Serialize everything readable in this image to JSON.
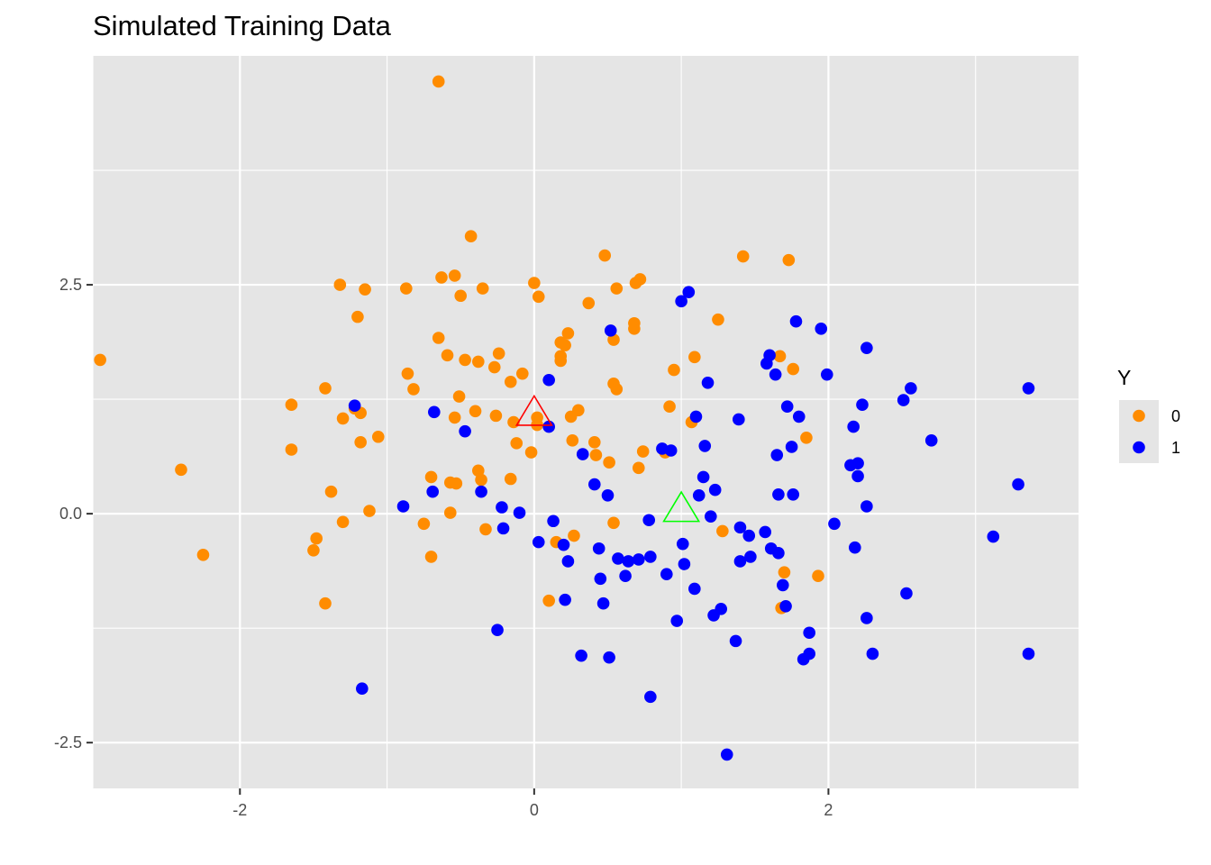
{
  "chart_data": {
    "type": "scatter",
    "title": "Simulated Training Data",
    "xlabel": "",
    "ylabel": "",
    "xlim": [
      -3.0,
      3.7
    ],
    "ylim": [
      -3.0,
      5.0
    ],
    "x_ticks": [
      -2,
      0,
      2
    ],
    "x_tick_labels": [
      "-2",
      "0",
      "2"
    ],
    "y_ticks": [
      -2.5,
      0,
      2.5
    ],
    "y_tick_labels": [
      "-2.5",
      "0.0",
      "2.5"
    ],
    "grid": true,
    "legend": {
      "title": "Y",
      "position": "right"
    },
    "series": [
      {
        "name": "0",
        "color": "#ff8c00",
        "points": [
          [
            -0.65,
            4.72
          ],
          [
            -2.95,
            1.68
          ],
          [
            -2.4,
            0.48
          ],
          [
            -2.25,
            -0.45
          ],
          [
            -1.65,
            1.19
          ],
          [
            -1.65,
            0.7
          ],
          [
            -1.5,
            -0.4
          ],
          [
            -1.48,
            -0.27
          ],
          [
            -1.42,
            -0.98
          ],
          [
            -1.42,
            1.37
          ],
          [
            -1.38,
            0.24
          ],
          [
            -1.3,
            -0.09
          ],
          [
            -1.3,
            1.04
          ],
          [
            -1.32,
            2.5
          ],
          [
            -1.22,
            1.15
          ],
          [
            -1.2,
            2.15
          ],
          [
            -1.18,
            1.1
          ],
          [
            -1.18,
            0.78
          ],
          [
            -1.15,
            2.45
          ],
          [
            -1.12,
            0.03
          ],
          [
            -1.06,
            0.84
          ],
          [
            -0.87,
            2.46
          ],
          [
            -0.86,
            1.53
          ],
          [
            -0.82,
            1.36
          ],
          [
            -0.75,
            -0.11
          ],
          [
            -0.7,
            0.4
          ],
          [
            -0.7,
            -0.47
          ],
          [
            -0.65,
            1.92
          ],
          [
            -0.63,
            2.58
          ],
          [
            -0.59,
            1.73
          ],
          [
            -0.57,
            0.34
          ],
          [
            -0.57,
            0.01
          ],
          [
            -0.54,
            2.6
          ],
          [
            -0.54,
            1.05
          ],
          [
            -0.53,
            0.33
          ],
          [
            -0.51,
            1.28
          ],
          [
            -0.5,
            2.38
          ],
          [
            -0.47,
            1.68
          ],
          [
            -0.43,
            3.03
          ],
          [
            -0.4,
            1.12
          ],
          [
            -0.38,
            1.66
          ],
          [
            -0.38,
            0.47
          ],
          [
            -0.36,
            0.37
          ],
          [
            -0.35,
            2.46
          ],
          [
            -0.33,
            -0.17
          ],
          [
            -0.27,
            1.6
          ],
          [
            -0.26,
            1.07
          ],
          [
            -0.24,
            1.75
          ],
          [
            -0.16,
            1.44
          ],
          [
            -0.16,
            0.38
          ],
          [
            -0.14,
            1.0
          ],
          [
            -0.12,
            0.77
          ],
          [
            -0.08,
            1.53
          ],
          [
            -0.02,
            0.67
          ],
          [
            0.0,
            2.52
          ],
          [
            0.02,
            1.05
          ],
          [
            0.02,
            0.97
          ],
          [
            0.03,
            2.37
          ],
          [
            0.15,
            -0.31
          ],
          [
            0.18,
            1.87
          ],
          [
            0.18,
            1.67
          ],
          [
            0.18,
            1.72
          ],
          [
            0.21,
            1.84
          ],
          [
            0.23,
            1.97
          ],
          [
            0.25,
            1.06
          ],
          [
            0.26,
            0.8
          ],
          [
            0.27,
            -0.24
          ],
          [
            0.3,
            1.13
          ],
          [
            0.1,
            -0.95
          ],
          [
            0.37,
            2.3
          ],
          [
            0.41,
            0.78
          ],
          [
            0.42,
            0.64
          ],
          [
            0.48,
            2.82
          ],
          [
            0.51,
            0.56
          ],
          [
            0.54,
            -0.1
          ],
          [
            0.54,
            1.42
          ],
          [
            0.54,
            1.9
          ],
          [
            0.56,
            2.46
          ],
          [
            0.56,
            1.36
          ],
          [
            0.68,
            2.08
          ],
          [
            0.68,
            2.02
          ],
          [
            0.69,
            2.52
          ],
          [
            0.71,
            0.5
          ],
          [
            0.72,
            2.56
          ],
          [
            0.74,
            0.68
          ],
          [
            0.89,
            0.67
          ],
          [
            0.92,
            1.17
          ],
          [
            0.95,
            1.57
          ],
          [
            1.07,
            1.0
          ],
          [
            1.09,
            1.71
          ],
          [
            1.25,
            2.12
          ],
          [
            1.28,
            -0.19
          ],
          [
            1.42,
            2.81
          ],
          [
            1.67,
            1.72
          ],
          [
            1.68,
            -1.03
          ],
          [
            1.7,
            -0.64
          ],
          [
            1.73,
            2.77
          ],
          [
            1.76,
            1.58
          ],
          [
            1.85,
            0.83
          ],
          [
            1.93,
            -0.68
          ]
        ]
      },
      {
        "name": "1",
        "color": "#0000ff",
        "points": [
          [
            -1.22,
            1.18
          ],
          [
            -1.17,
            -1.91
          ],
          [
            -0.89,
            0.08
          ],
          [
            -0.69,
            0.24
          ],
          [
            -0.68,
            1.11
          ],
          [
            -0.47,
            0.9
          ],
          [
            -0.36,
            0.24
          ],
          [
            -0.25,
            -1.27
          ],
          [
            -0.22,
            0.07
          ],
          [
            -0.21,
            -0.16
          ],
          [
            -0.1,
            0.01
          ],
          [
            0.03,
            -0.31
          ],
          [
            0.1,
            1.46
          ],
          [
            0.1,
            0.95
          ],
          [
            0.13,
            -0.08
          ],
          [
            0.2,
            -0.34
          ],
          [
            0.21,
            -0.94
          ],
          [
            0.23,
            -0.52
          ],
          [
            0.32,
            -1.55
          ],
          [
            0.33,
            0.65
          ],
          [
            0.41,
            0.32
          ],
          [
            0.44,
            -0.38
          ],
          [
            0.45,
            -0.71
          ],
          [
            0.47,
            -0.98
          ],
          [
            0.5,
            0.2
          ],
          [
            0.51,
            -1.57
          ],
          [
            0.52,
            2.0
          ],
          [
            0.57,
            -0.49
          ],
          [
            0.62,
            -0.68
          ],
          [
            0.64,
            -0.52
          ],
          [
            0.71,
            -0.5
          ],
          [
            0.78,
            -0.07
          ],
          [
            0.79,
            -2.0
          ],
          [
            0.79,
            -0.47
          ],
          [
            0.87,
            0.71
          ],
          [
            0.9,
            -0.66
          ],
          [
            0.93,
            0.69
          ],
          [
            0.97,
            -1.17
          ],
          [
            1.0,
            2.32
          ],
          [
            1.01,
            -0.33
          ],
          [
            1.02,
            -0.55
          ],
          [
            1.05,
            2.42
          ],
          [
            1.09,
            -0.82
          ],
          [
            1.1,
            1.06
          ],
          [
            1.12,
            0.2
          ],
          [
            1.15,
            0.4
          ],
          [
            1.16,
            0.74
          ],
          [
            1.18,
            1.43
          ],
          [
            1.2,
            -0.03
          ],
          [
            1.22,
            -1.11
          ],
          [
            1.23,
            0.26
          ],
          [
            1.27,
            -1.04
          ],
          [
            1.37,
            -1.39
          ],
          [
            1.39,
            1.03
          ],
          [
            1.4,
            -0.15
          ],
          [
            1.4,
            -0.52
          ],
          [
            1.46,
            -0.24
          ],
          [
            1.47,
            -0.47
          ],
          [
            1.57,
            -0.2
          ],
          [
            1.58,
            1.64
          ],
          [
            1.6,
            1.73
          ],
          [
            1.61,
            -0.38
          ],
          [
            1.64,
            1.52
          ],
          [
            1.65,
            0.64
          ],
          [
            1.66,
            0.21
          ],
          [
            1.66,
            -0.43
          ],
          [
            1.69,
            -0.78
          ],
          [
            1.71,
            -1.01
          ],
          [
            1.72,
            1.17
          ],
          [
            1.75,
            0.73
          ],
          [
            1.76,
            0.21
          ],
          [
            1.78,
            2.1
          ],
          [
            1.8,
            1.06
          ],
          [
            1.83,
            -1.59
          ],
          [
            1.87,
            -1.53
          ],
          [
            1.87,
            -1.3
          ],
          [
            1.95,
            2.02
          ],
          [
            1.99,
            1.52
          ],
          [
            2.04,
            -0.11
          ],
          [
            2.15,
            0.53
          ],
          [
            2.17,
            0.95
          ],
          [
            2.18,
            -0.37
          ],
          [
            2.2,
            0.41
          ],
          [
            2.2,
            0.55
          ],
          [
            2.23,
            1.19
          ],
          [
            2.26,
            0.08
          ],
          [
            2.26,
            1.81
          ],
          [
            2.26,
            -1.14
          ],
          [
            2.3,
            -1.53
          ],
          [
            2.51,
            1.24
          ],
          [
            2.53,
            -0.87
          ],
          [
            2.56,
            1.37
          ],
          [
            2.7,
            0.8
          ],
          [
            3.12,
            -0.25
          ],
          [
            3.29,
            0.32
          ],
          [
            3.36,
            1.37
          ],
          [
            3.36,
            -1.53
          ],
          [
            1.31,
            -2.63
          ]
        ]
      },
      {
        "name": "",
        "color": "#ff0000",
        "marker": "triangle-open",
        "legend": false,
        "points": [
          [
            0.0,
            1.08
          ]
        ]
      },
      {
        "name": "",
        "color": "#00ff00",
        "marker": "triangle-open",
        "legend": false,
        "points": [
          [
            1.0,
            0.03
          ]
        ]
      }
    ]
  }
}
